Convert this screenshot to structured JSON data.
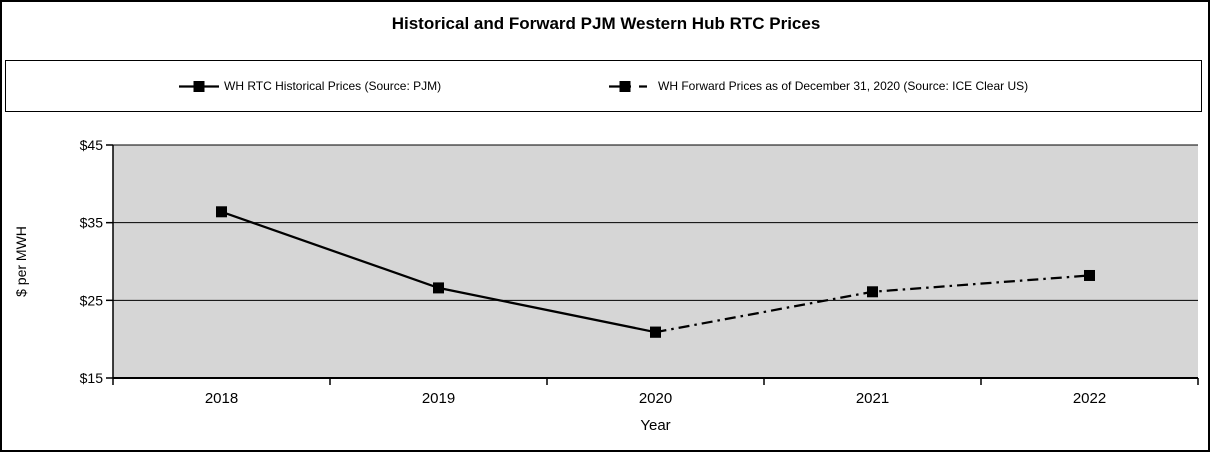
{
  "window": {
    "background": "#FFFFFF",
    "frame_border_color": "#000000"
  },
  "chart_data": {
    "type": "line",
    "title": "Historical and Forward PJM Western Hub RTC Prices",
    "categories": [
      "2018",
      "2019",
      "2020",
      "2021",
      "2022"
    ],
    "series": [
      {
        "name": "WH RTC Historical Prices (Source: PJM)",
        "line_style": "solid",
        "marker": "square",
        "color": "#000000",
        "x": [
          "2018",
          "2019",
          "2020"
        ],
        "values": [
          36.4,
          26.6,
          20.9
        ]
      },
      {
        "name": "WH Forward Prices as of December 31, 2020 (Source: ICE Clear US)",
        "line_style": "dash-dot",
        "marker": "square",
        "color": "#000000",
        "x": [
          "2020",
          "2021",
          "2022"
        ],
        "values": [
          20.9,
          26.1,
          28.2
        ]
      }
    ],
    "xlabel": "Year",
    "ylabel": "$ per MWH",
    "ylim": [
      15,
      45
    ],
    "yticks": [
      {
        "value": 15,
        "label": "$15"
      },
      {
        "value": 25,
        "label": "$25"
      },
      {
        "value": 35,
        "label": "$35"
      },
      {
        "value": 45,
        "label": "$45"
      }
    ],
    "grid": "horizontal",
    "legend_position": "top",
    "plot_bg": "#D6D6D6"
  }
}
